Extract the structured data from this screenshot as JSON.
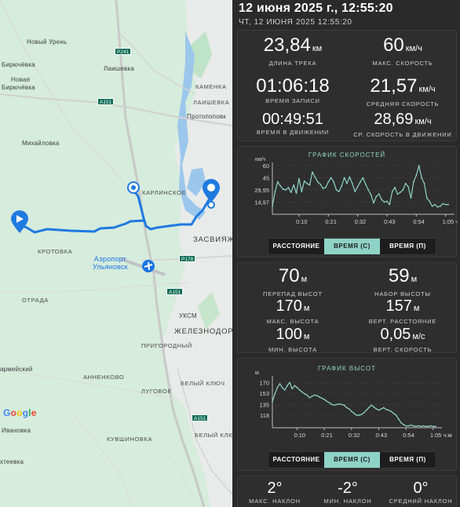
{
  "map": {
    "labels": {
      "noviy_uren": "Новый Урень",
      "biryuchevka": "Бирючёвка",
      "novaya_biryuchevka_1": "Новая",
      "novaya_biryuchevka_2": "Бирючёвка",
      "laishevka": "Лаишевка",
      "kamenka": "КАМЕНКА",
      "laishevka_caps": "ЛАИШЕВКА",
      "protopopovka": "Протопоповк",
      "mikhailovka": "Михайловка",
      "karlinskoe": "КАРЛИНСКОЕ",
      "zasviyazh": "ЗАСВИЯЖ",
      "krotovka": "КРОТОВКА",
      "airport_1": "Аэропорт",
      "airport_2": "Ульяновск",
      "otrada": "ОТРАДА",
      "uksm": "УКСМ",
      "zheleznodor": "ЖЕЛЕЗНОДОР",
      "prigorodny": "ПРИГОРОДНЫЙ",
      "armeisky": "армейский",
      "annenkovo": "АННЕНКОВО",
      "lugovoe": "ЛУГОВОЕ",
      "bely_klyuch": "БЕЛЫЙ КЛЮЧ",
      "bely_klyuch_2": "БЕЛЫЙ КЛЮЧ",
      "kuvshinovka": "КУВШИНОВКА",
      "ivanovka": "Ивановка",
      "tekheevka": "хтеевка"
    },
    "shields": {
      "p241": "P241",
      "a151_top": "A151",
      "p178": "P178",
      "a151_mid": "A151",
      "a151_low": "A151"
    },
    "logo": "Google",
    "colors": {
      "route": "#1f7ae0",
      "land": "#d6ecdc",
      "city": "#e8ebe9"
    }
  },
  "header": {
    "date": "12 июня 2025 г., 12:55:20",
    "subtitle": "ЧТ, 12 ИЮНЯ 2025 12:55:20"
  },
  "stats": {
    "track_length": {
      "value": "23,84",
      "unit": "км",
      "label": "ДЛИНА ТРЕКА"
    },
    "max_speed": {
      "value": "60",
      "unit": "км/ч",
      "label": "МАКС. СКОРОСТЬ"
    },
    "record_time": {
      "value": "01:06:18",
      "label": "ВРЕМЯ ЗАПИСИ"
    },
    "avg_speed": {
      "value": "21,57",
      "unit": "км/ч",
      "label": "СРЕДНЯЯ СКОРОСТЬ"
    },
    "moving_time": {
      "value": "00:49:51",
      "label": "ВРЕМЯ В ДВИЖЕНИИ"
    },
    "avg_moving_speed": {
      "value": "28,69",
      "unit": "км/ч",
      "label": "СР. СКОРОСТЬ В ДВИЖЕНИИ"
    }
  },
  "speed_chart": {
    "title": "ГРАФИК СКОРОСТЕЙ",
    "unit_label": "км/ч",
    "y_ticks": [
      "60",
      "45",
      "29,95",
      "14,97"
    ],
    "x_ticks": [
      "0:10",
      "0:21",
      "0:32",
      "0:43",
      "0:54",
      "1:05 ч:м"
    ]
  },
  "speed_toggle": {
    "distance": "РАССТОЯНИЕ",
    "time_s": "ВРЕМЯ (С)",
    "time_p": "ВРЕМЯ (П)"
  },
  "elevation_stats": {
    "elevation_diff": {
      "value": "70",
      "unit": "м",
      "label": "ПЕРЕПАД ВЫСОТ"
    },
    "elevation_gain": {
      "value": "59",
      "unit": "м",
      "label": "НАБОР ВЫСОТЫ"
    },
    "max_height": {
      "value": "170",
      "unit": "м",
      "label": "МАКС. ВЫСОТА"
    },
    "vert_distance": {
      "value": "157",
      "unit": "м",
      "label": "ВЕРТ. РАССТОЯНИЕ"
    },
    "min_height": {
      "value": "100",
      "unit": "м",
      "label": "МИН. ВЫСОТА"
    },
    "vert_speed": {
      "value": "0,05",
      "unit": "м/с",
      "label": "ВЕРТ. СКОРОСТЬ"
    }
  },
  "elevation_chart": {
    "title": "ГРАФИК ВЫСОТ",
    "unit_label": "м",
    "y_ticks": [
      "170",
      "153",
      "135",
      "118"
    ],
    "x_ticks": [
      "0:10",
      "0:21",
      "0:32",
      "0:43",
      "0:54",
      "1:05 ч:м"
    ]
  },
  "elevation_toggle": {
    "distance": "РАССТОЯНИЕ",
    "time_s": "ВРЕМЯ (С)",
    "time_p": "ВРЕМЯ (П)"
  },
  "slopes": {
    "max": {
      "value": "2°",
      "label": "МАКС. НАКЛОН"
    },
    "min": {
      "value": "-2°",
      "label": "МИН. НАКЛОН"
    },
    "avg": {
      "value": "0°",
      "label": "СРЕДНИЙ НАКЛОН"
    }
  },
  "chart_data": [
    {
      "type": "line",
      "title": "ГРАФИК СКОРОСТЕЙ",
      "ylabel": "км/ч",
      "ylim": [
        0,
        62
      ],
      "xlim": [
        0,
        66
      ],
      "x_unit": "minutes",
      "x": [
        0,
        1,
        2,
        3,
        4,
        5,
        6,
        7,
        8,
        9,
        10,
        11,
        12,
        13,
        14,
        15,
        16,
        17,
        18,
        19,
        20,
        21,
        22,
        23,
        24,
        25,
        26,
        27,
        28,
        29,
        30,
        31,
        32,
        33,
        34,
        35,
        36,
        37,
        38,
        39,
        40,
        41,
        42,
        43,
        44,
        45,
        46,
        47,
        48,
        49,
        50,
        51,
        52,
        53,
        54,
        55,
        56,
        57,
        58,
        59,
        60,
        61,
        62,
        63,
        64,
        65,
        66
      ],
      "values": [
        10,
        28,
        40,
        35,
        31,
        30,
        33,
        27,
        36,
        26,
        44,
        28,
        41,
        38,
        36,
        52,
        46,
        40,
        37,
        32,
        33,
        40,
        45,
        40,
        30,
        28,
        35,
        45,
        38,
        46,
        38,
        28,
        34,
        40,
        45,
        37,
        30,
        24,
        14,
        22,
        25,
        18,
        15,
        16,
        12,
        28,
        33,
        25,
        27,
        30,
        38,
        34,
        20,
        40,
        48,
        60,
        45,
        38,
        20,
        16,
        10,
        12,
        9,
        10,
        13,
        12,
        12
      ]
    },
    {
      "type": "line",
      "title": "ГРАФИК ВЫСОТ",
      "ylabel": "м",
      "ylim": [
        98,
        178
      ],
      "xlim": [
        0,
        66
      ],
      "x_unit": "minutes",
      "x": [
        0,
        1,
        2,
        3,
        4,
        5,
        6,
        7,
        8,
        9,
        10,
        11,
        12,
        13,
        14,
        15,
        16,
        17,
        18,
        19,
        20,
        21,
        22,
        23,
        24,
        25,
        26,
        27,
        28,
        29,
        30,
        31,
        32,
        33,
        34,
        35,
        36,
        37,
        38,
        39,
        40,
        41,
        42,
        43,
        44,
        45,
        46,
        47,
        48,
        49,
        50,
        51,
        52,
        53,
        54,
        55,
        56,
        57,
        58,
        59,
        60,
        61,
        62,
        63,
        64,
        65,
        66
      ],
      "values": [
        140,
        152,
        162,
        168,
        162,
        158,
        165,
        170,
        160,
        165,
        162,
        158,
        155,
        152,
        150,
        146,
        148,
        150,
        149,
        147,
        145,
        143,
        140,
        138,
        135,
        134,
        135,
        136,
        135,
        134,
        130,
        128,
        124,
        121,
        118,
        118,
        119,
        122,
        126,
        130,
        134,
        131,
        128,
        126,
        128,
        130,
        127,
        126,
        124,
        121,
        118,
        112,
        106,
        103,
        101,
        101,
        102,
        101,
        100,
        101,
        100,
        101,
        100,
        100,
        101,
        100,
        100
      ]
    }
  ]
}
